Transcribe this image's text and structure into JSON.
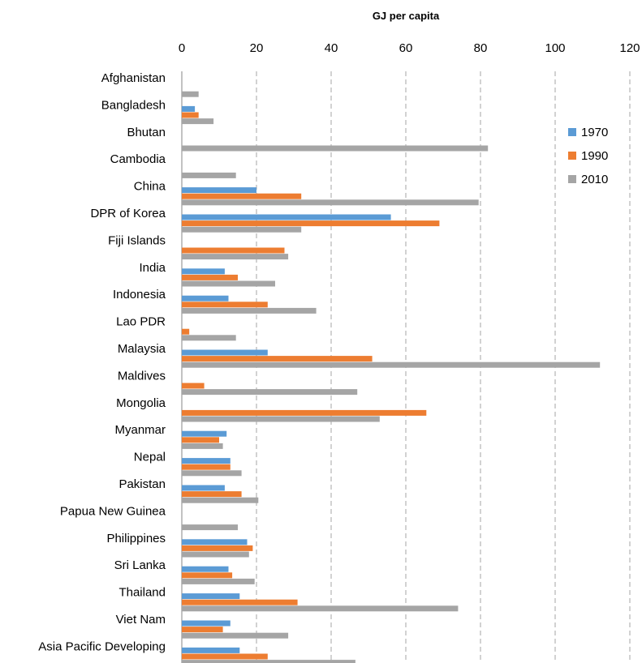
{
  "chart_data": {
    "type": "bar",
    "orientation": "horizontal",
    "xlabel": "GJ per capita",
    "xlim": [
      0,
      120
    ],
    "xticks": [
      0,
      20,
      40,
      60,
      80,
      100,
      120
    ],
    "grid": "vertical dashed",
    "legend_position": "right",
    "categories": [
      "Afghanistan",
      "Bangladesh",
      "Bhutan",
      "Cambodia",
      "China",
      "DPR of Korea",
      "Fiji Islands",
      "India",
      "Indonesia",
      "Lao PDR",
      "Malaysia",
      "Maldives",
      "Mongolia",
      "Myanmar",
      "Nepal",
      "Pakistan",
      "Papua New Guinea",
      "Philippines",
      "Sri Lanka",
      "Thailand",
      "Viet Nam",
      "Asia Pacific Developing"
    ],
    "series": [
      {
        "name": "1970",
        "color": "#5b9bd5",
        "values": [
          0,
          3.5,
          0,
          0,
          20,
          56,
          0,
          11.5,
          12.5,
          0,
          23,
          0,
          0,
          12,
          13,
          11.5,
          0,
          17.5,
          12.5,
          15.5,
          13,
          15.5
        ]
      },
      {
        "name": "1990",
        "color": "#ed7d31",
        "values": [
          0,
          4.5,
          0,
          0,
          32,
          69,
          27.5,
          15,
          23,
          2,
          51,
          6,
          65.5,
          10,
          13,
          16,
          0,
          19,
          13.5,
          31,
          11,
          23
        ]
      },
      {
        "name": "2010",
        "color": "#a5a5a5",
        "values": [
          4.5,
          8.5,
          82,
          14.5,
          79.5,
          32,
          28.5,
          25,
          36,
          14.5,
          112,
          47,
          53,
          11,
          16,
          20.5,
          15,
          18,
          19.5,
          74,
          28.5,
          46.5
        ]
      }
    ]
  }
}
